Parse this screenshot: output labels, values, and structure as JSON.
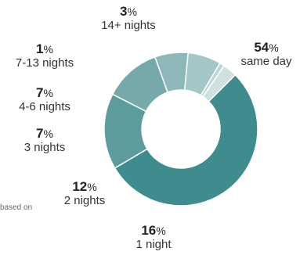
{
  "chart_data": {
    "type": "pie",
    "donut": true,
    "title": "",
    "footnote": "based on",
    "slices": [
      {
        "label": "same day",
        "value": 54,
        "color": "#3e8c8e"
      },
      {
        "label": "1 night",
        "value": 16,
        "color": "#5c9c9c"
      },
      {
        "label": "2 nights",
        "value": 12,
        "color": "#76a9aa"
      },
      {
        "label": "3 nights",
        "value": 7,
        "color": "#8db7b9"
      },
      {
        "label": "4-6 nights",
        "value": 7,
        "color": "#a3c7c9"
      },
      {
        "label": "7-13 nights",
        "value": 1,
        "color": "#bcd5d6"
      },
      {
        "label": "14+ nights",
        "value": 3,
        "color": "#cfe0e1"
      }
    ],
    "percent_symbol": "%"
  }
}
